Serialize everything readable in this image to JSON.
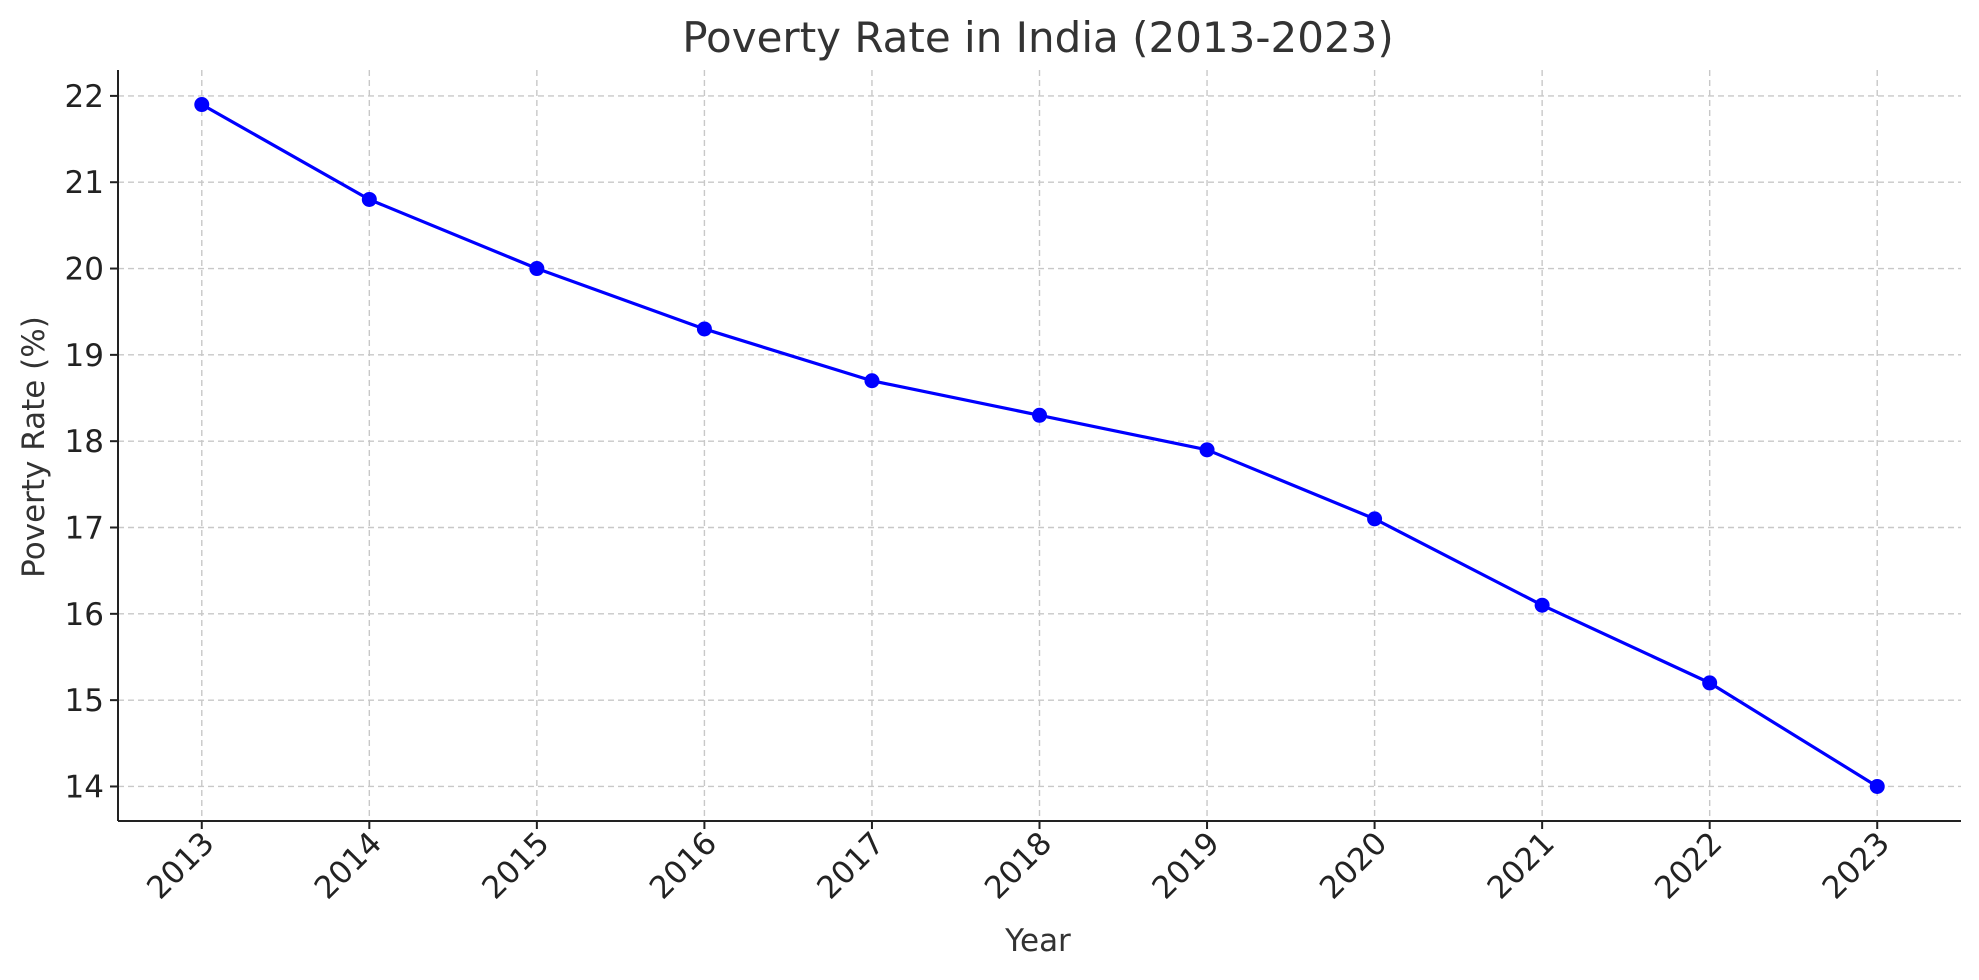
{
  "chart_data": {
    "type": "line",
    "title": "Poverty Rate in India (2013-2023)",
    "xlabel": "Year",
    "ylabel": "Poverty Rate (%)",
    "x": [
      2013,
      2014,
      2015,
      2016,
      2017,
      2018,
      2019,
      2020,
      2021,
      2022,
      2023
    ],
    "x_tick_labels": [
      "2013",
      "2014",
      "2015",
      "2016",
      "2017",
      "2018",
      "2019",
      "2020",
      "2021",
      "2022",
      "2023"
    ],
    "series": [
      {
        "values": [
          21.9,
          20.8,
          20.0,
          19.3,
          18.7,
          18.3,
          17.9,
          17.1,
          16.1,
          15.2,
          14.0
        ],
        "color": "#0000ff",
        "marker": "circle"
      }
    ],
    "y_ticks": [
      14,
      15,
      16,
      17,
      18,
      19,
      20,
      21,
      22
    ],
    "y_tick_labels": [
      "14",
      "15",
      "16",
      "17",
      "18",
      "19",
      "20",
      "21",
      "22"
    ],
    "xlim": [
      2012.5,
      2023.5
    ],
    "ylim": [
      13.6,
      22.3
    ],
    "grid": true,
    "x_tick_rotation_deg": 45
  }
}
